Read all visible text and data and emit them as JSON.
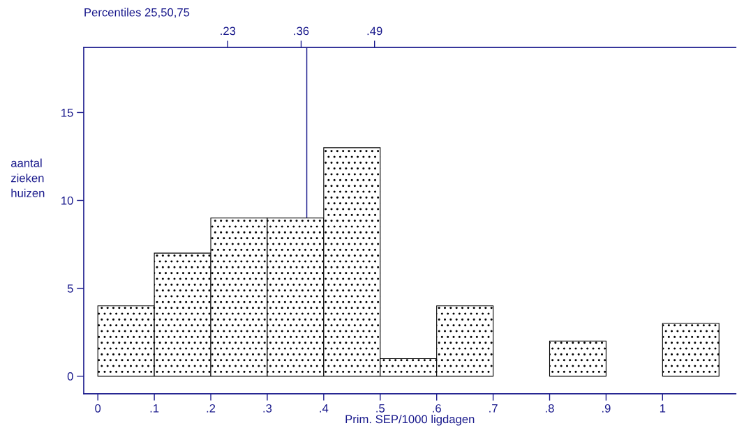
{
  "chart_data": {
    "type": "histogram",
    "xlabel": "Prim. SEP/1000 ligdagen",
    "ylabel": "aantal\nzieken\nhuizen",
    "x2label": "Percentiles 25,50,75",
    "bins": [
      0,
      0.1,
      0.2,
      0.3,
      0.4,
      0.5,
      0.6,
      0.7,
      0.8,
      0.9,
      1.0,
      1.1
    ],
    "values": [
      4,
      7,
      9,
      9,
      13,
      1,
      4,
      0,
      2,
      0,
      3
    ],
    "xlim": [
      -0.025,
      1.13
    ],
    "ylim": [
      -1,
      18.7
    ],
    "xticks": [
      0,
      {
        "value": 0.1,
        "label": ".1"
      },
      {
        "value": 0.2,
        "label": ".2"
      },
      {
        "value": 0.3,
        "label": ".3"
      },
      {
        "value": 0.4,
        "label": ".4"
      },
      {
        "value": 0.5,
        "label": ".5"
      },
      {
        "value": 0.6,
        "label": ".6"
      },
      {
        "value": 0.7,
        "label": ".7"
      },
      {
        "value": 0.8,
        "label": ".8"
      },
      {
        "value": 0.9,
        "label": ".9"
      },
      1
    ],
    "yticks": [
      0,
      5,
      10,
      15
    ],
    "x2lim": [
      -0.025,
      1.13
    ],
    "x2ticks": [
      {
        "value": 0.23,
        "label": ".23"
      },
      {
        "value": 0.36,
        "label": ".36"
      },
      {
        "value": 0.49,
        "label": ".49"
      }
    ],
    "ref_lines": [
      {
        "axis": "x",
        "value": 0.37,
        "color": "#1a1a8c"
      }
    ],
    "grid": false
  }
}
